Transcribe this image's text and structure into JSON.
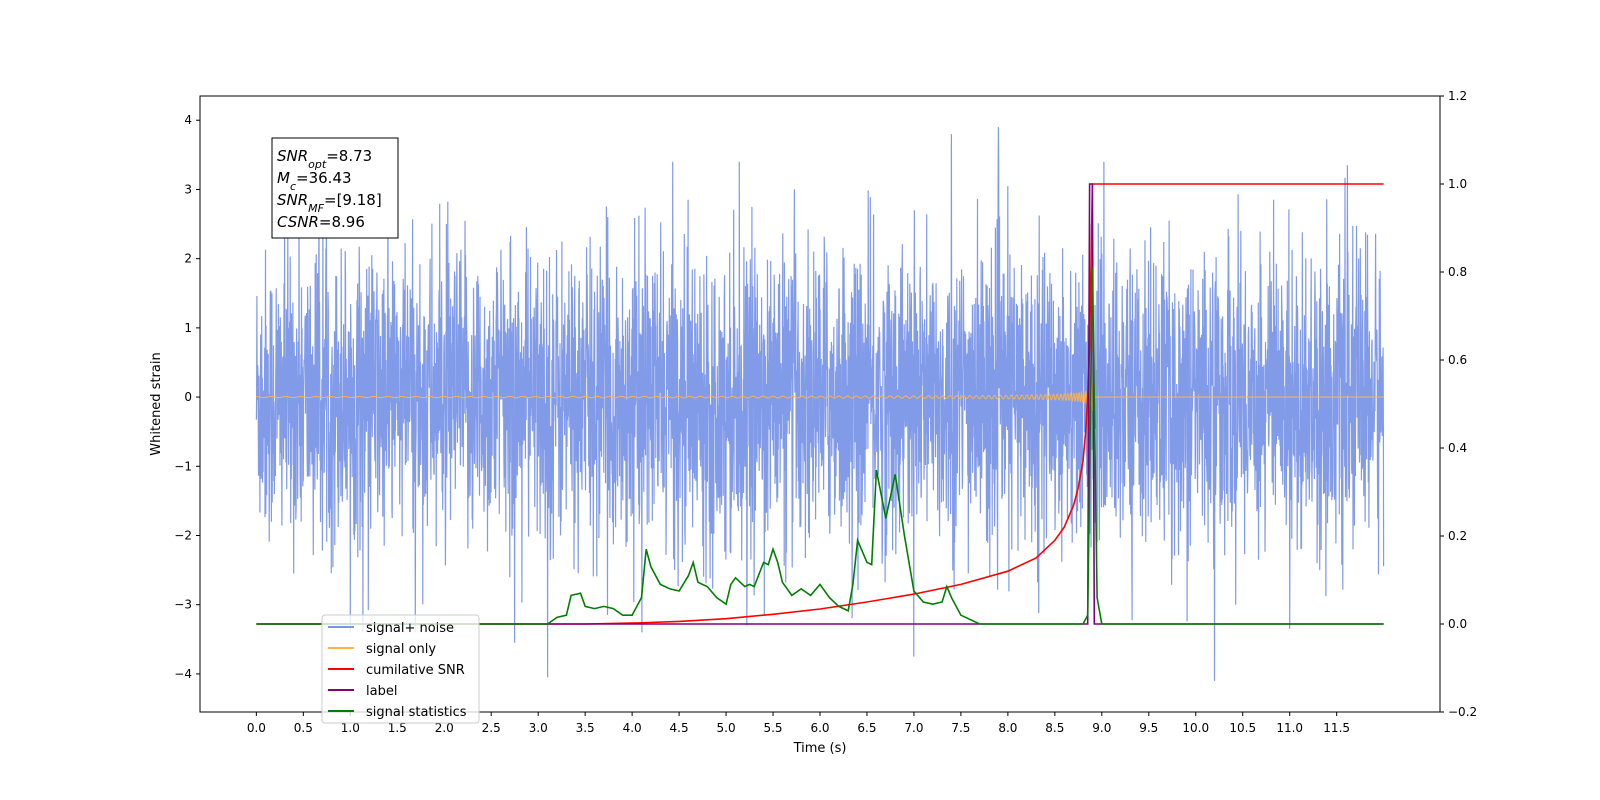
{
  "chart_data": {
    "type": "line",
    "xlabel": "Time (s)",
    "ylabel_left": "Whitened strain",
    "ylabel_right": "",
    "xlim": [
      -0.6,
      12.6
    ],
    "ylim_left": [
      -4.55,
      4.35
    ],
    "ylim_right": [
      -0.2,
      1.2
    ],
    "x_ticks": [
      0.0,
      0.5,
      1.0,
      1.5,
      2.0,
      2.5,
      3.0,
      3.5,
      4.0,
      4.5,
      5.0,
      5.5,
      6.0,
      6.5,
      7.0,
      7.5,
      8.0,
      8.5,
      9.0,
      9.5,
      10.0,
      10.5,
      11.0,
      11.5
    ],
    "x_tick_labels": [
      "0.0",
      "0.5",
      "1.0",
      "1.5",
      "2.0",
      "2.5",
      "3.0",
      "3.5",
      "4.0",
      "4.5",
      "5.0",
      "5.5",
      "6.0",
      "6.5",
      "7.0",
      "7.5",
      "8.0",
      "8.5",
      "9.0",
      "9.5",
      "10.0",
      "10.5",
      "11.0",
      "11.5"
    ],
    "y_left_ticks": [
      -4,
      -3,
      -2,
      -1,
      0,
      1,
      2,
      3,
      4
    ],
    "y_left_tick_labels": [
      "−4",
      "−3",
      "−2",
      "−1",
      "0",
      "1",
      "2",
      "3",
      "4"
    ],
    "y_right_ticks": [
      -0.2,
      0.0,
      0.2,
      0.4,
      0.6,
      0.8,
      1.0,
      1.2
    ],
    "y_right_tick_labels": [
      "−0.2",
      "0.0",
      "0.2",
      "0.4",
      "0.6",
      "0.8",
      "1.0",
      "1.2"
    ],
    "grid": false,
    "legend_position": "lower-left",
    "annotation": [
      {
        "base": "SNR",
        "sub": "opt",
        "value": "=8.73"
      },
      {
        "base": "M",
        "sub": "c",
        "value": "=36.43"
      },
      {
        "base": "SNR",
        "sub": "MF",
        "value": "=[9.18]"
      },
      {
        "base": "CSNR",
        "sub": "",
        "value": "=8.96"
      }
    ],
    "series": [
      {
        "name": "signal+ noise",
        "color": "#7b96e8",
        "axis": "left",
        "kind": "noise",
        "x_range": [
          0.0,
          12.0
        ],
        "spread_min": [
          -3.8,
          3.9
        ],
        "notable_peaks": [
          [
            7.4,
            3.8
          ],
          [
            7.9,
            3.9
          ],
          [
            7.0,
            -3.75
          ],
          [
            10.2,
            -4.1
          ],
          [
            3.1,
            -4.05
          ],
          [
            2.75,
            -3.55
          ],
          [
            11.0,
            -3.35
          ]
        ]
      },
      {
        "name": "signal only",
        "color": "#ffb347",
        "axis": "left",
        "kind": "chirp",
        "x_range": [
          0.0,
          12.0
        ],
        "merger_time": 8.9,
        "peak_amplitude": 0.7
      },
      {
        "name": "cumilative SNR",
        "color": "#ff0000",
        "axis": "right",
        "x": [
          0.0,
          3.5,
          4.0,
          4.5,
          5.0,
          5.5,
          6.0,
          6.5,
          7.0,
          7.5,
          8.0,
          8.3,
          8.5,
          8.6,
          8.7,
          8.75,
          8.8,
          8.83,
          8.85,
          8.87,
          8.9,
          12.0
        ],
        "y": [
          0.0,
          0.0,
          0.002,
          0.006,
          0.012,
          0.022,
          0.034,
          0.05,
          0.068,
          0.09,
          0.12,
          0.15,
          0.19,
          0.22,
          0.27,
          0.31,
          0.37,
          0.44,
          0.52,
          0.63,
          1.0,
          1.0
        ]
      },
      {
        "name": "label",
        "color": "#800080",
        "axis": "right",
        "x": [
          0.0,
          8.85,
          8.87,
          8.9,
          8.92,
          12.0
        ],
        "y": [
          0.0,
          0.0,
          1.0,
          1.0,
          0.0,
          0.0
        ]
      },
      {
        "name": "signal statistics",
        "color": "#008000",
        "axis": "right",
        "x": [
          0.0,
          3.1,
          3.2,
          3.3,
          3.35,
          3.45,
          3.5,
          3.6,
          3.7,
          3.8,
          3.9,
          4.0,
          4.1,
          4.15,
          4.2,
          4.3,
          4.4,
          4.5,
          4.6,
          4.65,
          4.7,
          4.8,
          4.9,
          5.0,
          5.05,
          5.1,
          5.2,
          5.25,
          5.3,
          5.4,
          5.45,
          5.5,
          5.55,
          5.6,
          5.7,
          5.8,
          5.9,
          6.0,
          6.1,
          6.2,
          6.3,
          6.35,
          6.4,
          6.5,
          6.55,
          6.6,
          6.7,
          6.8,
          6.9,
          7.0,
          7.1,
          7.2,
          7.3,
          7.35,
          7.4,
          7.5,
          7.7,
          8.0,
          8.5,
          8.8,
          8.85,
          8.9,
          8.95,
          9.0,
          9.1,
          12.0
        ],
        "y": [
          0.0,
          0.0,
          0.015,
          0.02,
          0.065,
          0.07,
          0.04,
          0.035,
          0.04,
          0.035,
          0.02,
          0.02,
          0.06,
          0.17,
          0.13,
          0.09,
          0.08,
          0.075,
          0.11,
          0.14,
          0.095,
          0.085,
          0.06,
          0.045,
          0.09,
          0.105,
          0.085,
          0.09,
          0.085,
          0.14,
          0.135,
          0.17,
          0.14,
          0.095,
          0.065,
          0.08,
          0.065,
          0.09,
          0.06,
          0.04,
          0.03,
          0.09,
          0.19,
          0.14,
          0.135,
          0.35,
          0.24,
          0.34,
          0.2,
          0.075,
          0.05,
          0.045,
          0.05,
          0.085,
          0.06,
          0.02,
          0.0,
          0.0,
          0.0,
          0.0,
          0.02,
          0.81,
          0.06,
          0.0,
          0.0,
          0.0
        ]
      }
    ]
  }
}
